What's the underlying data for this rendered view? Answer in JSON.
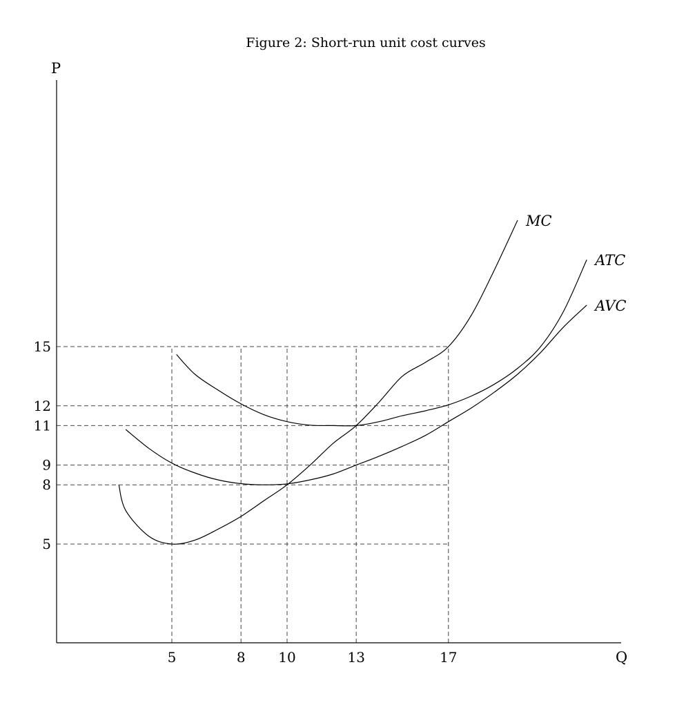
{
  "chart_data": {
    "type": "line",
    "title": "Figure 2: Short-run unit cost curves",
    "xlabel": "Q",
    "ylabel": "P",
    "xlim": [
      0,
      24.5
    ],
    "ylim": [
      0,
      24
    ],
    "grid": false,
    "x_ticks": [
      5,
      8,
      10,
      13,
      17
    ],
    "y_ticks": [
      5,
      8,
      9,
      11,
      12,
      15
    ],
    "guides": {
      "horizontal": [
        {
          "y": 15,
          "x_end": 17
        },
        {
          "y": 12,
          "x_end": 17
        },
        {
          "y": 11,
          "x_end": 17
        },
        {
          "y": 9,
          "x_end": 17
        },
        {
          "y": 8,
          "x_end": 17
        },
        {
          "y": 5,
          "x_end": 17
        }
      ],
      "vertical": [
        {
          "x": 5,
          "y_end": 15
        },
        {
          "x": 8,
          "y_end": 15
        },
        {
          "x": 10,
          "y_end": 15
        },
        {
          "x": 13,
          "y_end": 15
        },
        {
          "x": 17,
          "y_end": 15
        }
      ]
    },
    "series": [
      {
        "name": "MC",
        "points": [
          [
            2.7,
            8
          ],
          [
            3,
            6.7
          ],
          [
            4,
            5.4
          ],
          [
            5,
            5.0
          ],
          [
            6,
            5.2
          ],
          [
            7,
            5.75
          ],
          [
            8,
            6.4
          ],
          [
            9,
            7.2
          ],
          [
            10,
            8.0
          ],
          [
            11,
            9.0
          ],
          [
            12,
            10.1
          ],
          [
            13,
            11.0
          ],
          [
            14,
            12.2
          ],
          [
            15,
            13.5
          ],
          [
            16,
            14.2
          ],
          [
            17,
            15.0
          ],
          [
            18,
            16.6
          ],
          [
            19,
            18.9
          ],
          [
            20,
            21.4
          ]
        ]
      },
      {
        "name": "ATC",
        "points": [
          [
            5.2,
            14.6
          ],
          [
            6,
            13.6
          ],
          [
            7,
            12.8
          ],
          [
            8,
            12.1
          ],
          [
            9,
            11.55
          ],
          [
            10,
            11.2
          ],
          [
            11,
            11.02
          ],
          [
            12,
            11.0
          ],
          [
            13,
            11.0
          ],
          [
            14,
            11.2
          ],
          [
            15,
            11.5
          ],
          [
            16,
            11.75
          ],
          [
            17,
            12.05
          ],
          [
            18,
            12.5
          ],
          [
            19,
            13.1
          ],
          [
            20,
            13.9
          ],
          [
            21,
            15.0
          ],
          [
            22,
            16.8
          ],
          [
            23,
            19.4
          ]
        ]
      },
      {
        "name": "AVC",
        "points": [
          [
            3,
            10.8
          ],
          [
            4,
            9.85
          ],
          [
            5,
            9.1
          ],
          [
            6,
            8.6
          ],
          [
            7,
            8.25
          ],
          [
            8,
            8.06
          ],
          [
            9,
            8.0
          ],
          [
            10,
            8.05
          ],
          [
            11,
            8.25
          ],
          [
            12,
            8.55
          ],
          [
            13,
            9.0
          ],
          [
            14,
            9.45
          ],
          [
            15,
            9.95
          ],
          [
            16,
            10.5
          ],
          [
            17,
            11.2
          ],
          [
            18,
            11.9
          ],
          [
            19,
            12.7
          ],
          [
            20,
            13.6
          ],
          [
            21,
            14.7
          ],
          [
            22,
            16.0
          ],
          [
            23,
            17.1
          ]
        ]
      }
    ]
  }
}
